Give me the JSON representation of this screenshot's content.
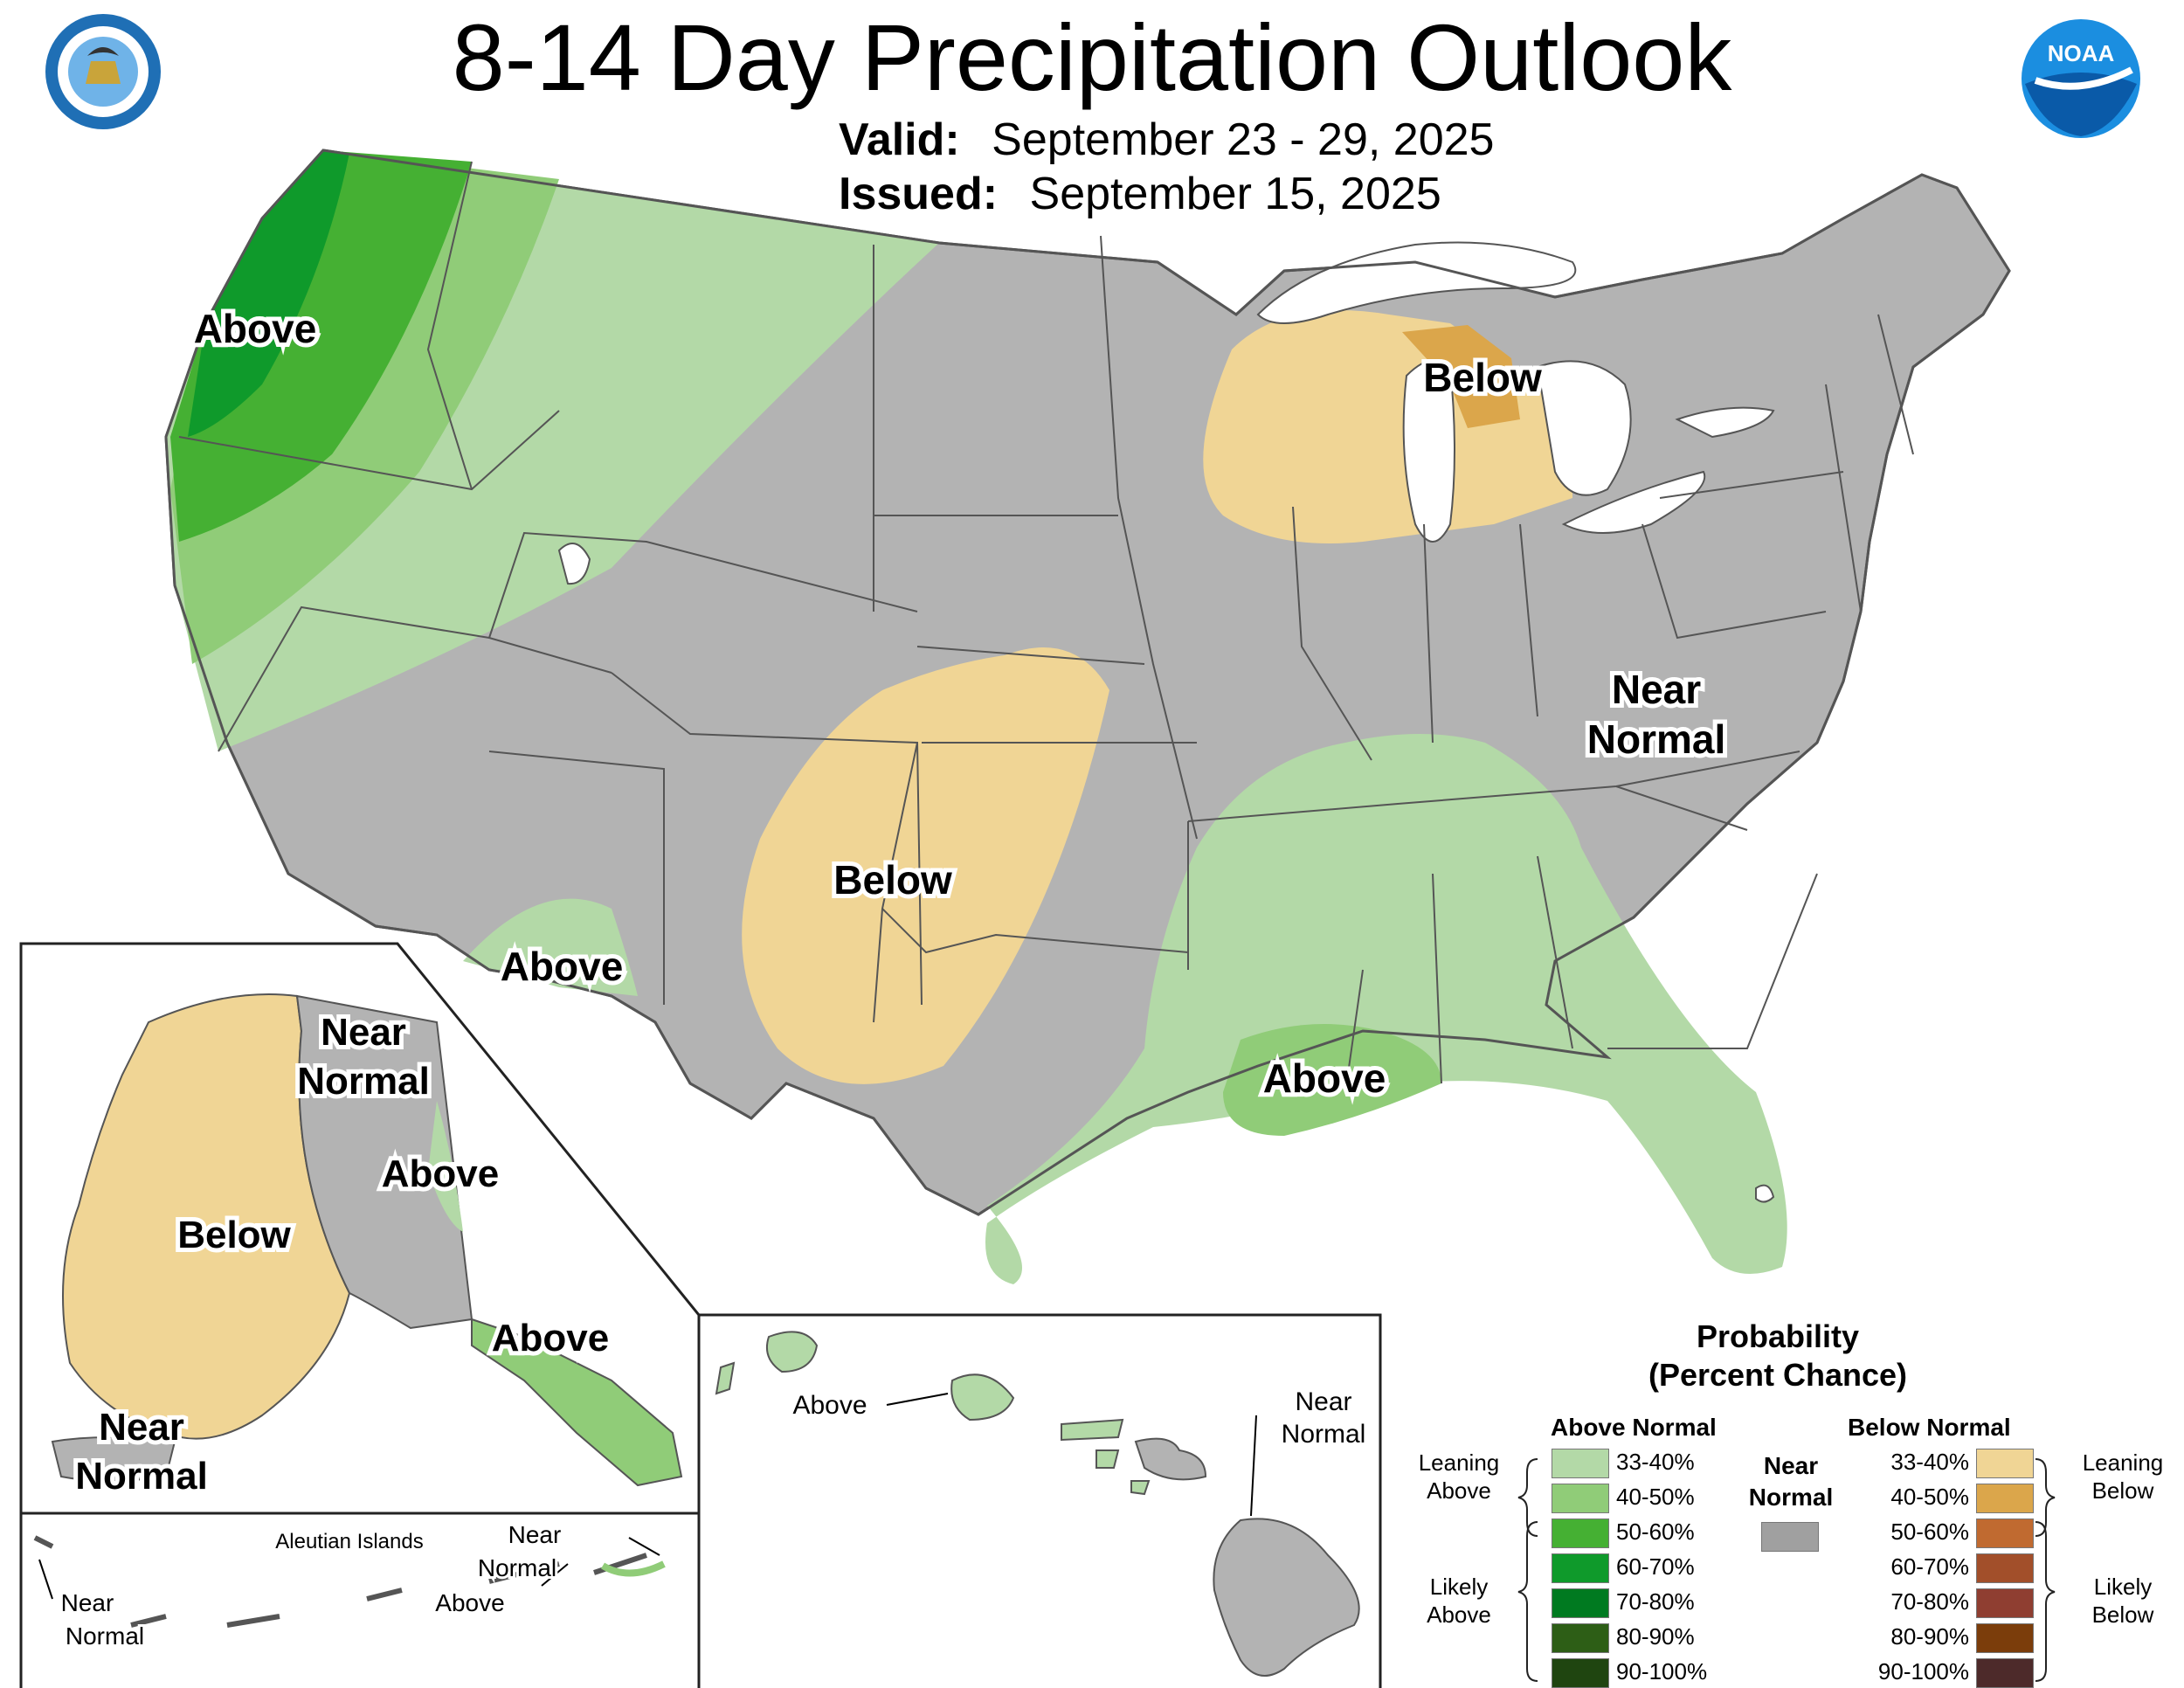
{
  "title": "8-14 Day Precipitation Outlook",
  "valid_label": "Valid:",
  "valid_value": "September 23 - 29, 2025",
  "issued_label": "Issued:",
  "issued_value": "September 15, 2025",
  "logos": {
    "left": "department-of-commerce-seal",
    "right": "noaa-logo",
    "right_text": "NOAA"
  },
  "map_labels": {
    "nw_above": "Above",
    "gl_below": "Below",
    "east_near": "Near",
    "east_normal": "Normal",
    "sw_below": "Below",
    "az_above": "Above",
    "gulf_above": "Above",
    "ak_near": "Near",
    "ak_normal": "Normal",
    "ak_above": "Above",
    "ak_below": "Below",
    "ak_se_above": "Above",
    "ak_sw_near": "Near",
    "ak_sw_normal": "Normal",
    "aleutian_title": "Aleutian Islands",
    "aleutian_near_w": "Near",
    "aleutian_normal_w": "Normal",
    "aleutian_near_e": "Near",
    "aleutian_normal_e": "Normal",
    "aleutian_above": "Above",
    "hi_above": "Above",
    "hi_near": "Near",
    "hi_normal": "Normal"
  },
  "legend": {
    "title_line1": "Probability",
    "title_line2": "(Percent Chance)",
    "above_header": "Above Normal",
    "below_header": "Below Normal",
    "near_line1": "Near",
    "near_line2": "Normal",
    "near_color": "#a0a0a0",
    "leaning_above_1": "Leaning",
    "leaning_above_2": "Above",
    "likely_above_1": "Likely",
    "likely_above_2": "Above",
    "leaning_below_1": "Leaning",
    "leaning_below_2": "Below",
    "likely_below_1": "Likely",
    "likely_below_2": "Below",
    "above": [
      {
        "range": "33-40%",
        "color": "#b3d9a7"
      },
      {
        "range": "40-50%",
        "color": "#90cc78"
      },
      {
        "range": "50-60%",
        "color": "#45b033"
      },
      {
        "range": "60-70%",
        "color": "#0f9a2b"
      },
      {
        "range": "70-80%",
        "color": "#007a20"
      },
      {
        "range": "80-90%",
        "color": "#2d5e16"
      },
      {
        "range": "90-100%",
        "color": "#1f4510"
      }
    ],
    "below": [
      {
        "range": "33-40%",
        "color": "#f0d595"
      },
      {
        "range": "40-50%",
        "color": "#dba64b"
      },
      {
        "range": "50-60%",
        "color": "#c06a30"
      },
      {
        "range": "60-70%",
        "color": "#a24f2a"
      },
      {
        "range": "70-80%",
        "color": "#8f3e31"
      },
      {
        "range": "80-90%",
        "color": "#7b3d0b"
      },
      {
        "range": "90-100%",
        "color": "#4d2a2a"
      }
    ]
  },
  "colors": {
    "near_normal": "#b3b3b3",
    "water": "#ffffff",
    "border": "#555555"
  }
}
